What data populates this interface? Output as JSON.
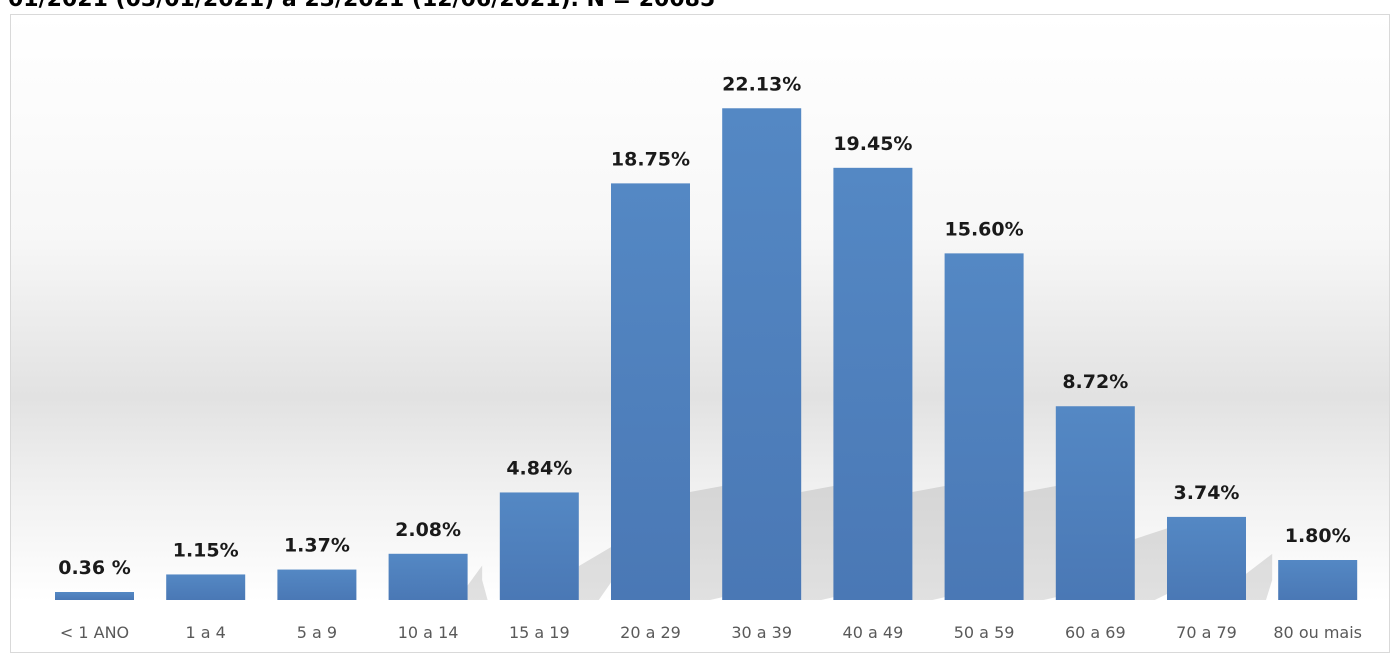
{
  "header": {
    "title": "01/2021 (03/01/2021) a 23/2021 (12/06/2021). N = 20085"
  },
  "chart_data": {
    "type": "bar",
    "title": "01/2021 (03/01/2021) a 23/2021 (12/06/2021). N = 20085",
    "xlabel": "",
    "ylabel": "",
    "categories": [
      "< 1 ANO",
      "1 a 4",
      "5 a 9",
      "10 a 14",
      "15 a 19",
      "20 a 29",
      "30 a 39",
      "40 a 49",
      "50 a 59",
      "60 a 69",
      "70 a 79",
      "80 ou mais"
    ],
    "values": [
      0.36,
      1.15,
      1.37,
      2.08,
      4.84,
      18.75,
      22.13,
      19.45,
      15.6,
      8.72,
      3.74,
      1.8
    ],
    "data_labels": [
      "0.36 %",
      "1.15%",
      "1.37%",
      "2.08%",
      "4.84%",
      "18.75%",
      "22.13%",
      "19.45%",
      "15.60%",
      "8.72%",
      "3.74%",
      "1.80%"
    ],
    "ylim": [
      0,
      25
    ],
    "grid": false,
    "legend": "none",
    "bar_color": "#4f81bd"
  }
}
